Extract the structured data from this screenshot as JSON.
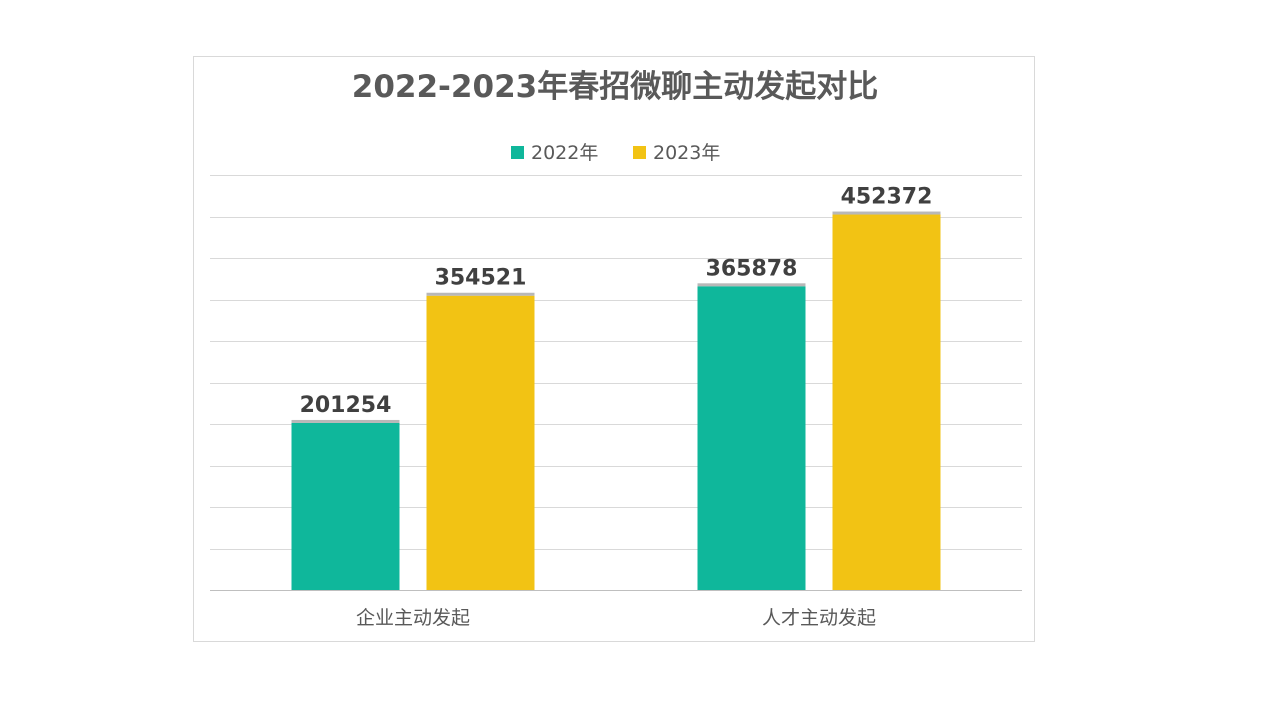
{
  "chart_data": {
    "type": "bar",
    "title": "2022-2023年春招微聊主动发起对比",
    "categories": [
      "企业主动发起",
      "人才主动发起"
    ],
    "series": [
      {
        "name": "2022年",
        "values": [
          201254,
          365878
        ],
        "color": "#0fb79b"
      },
      {
        "name": "2023年",
        "values": [
          354521,
          452372
        ],
        "color": "#f2c314"
      }
    ],
    "xlabel": "",
    "ylabel": "",
    "ylim": [
      0,
      500000
    ],
    "grid": true,
    "legend": "top-center",
    "data_labels": true
  }
}
